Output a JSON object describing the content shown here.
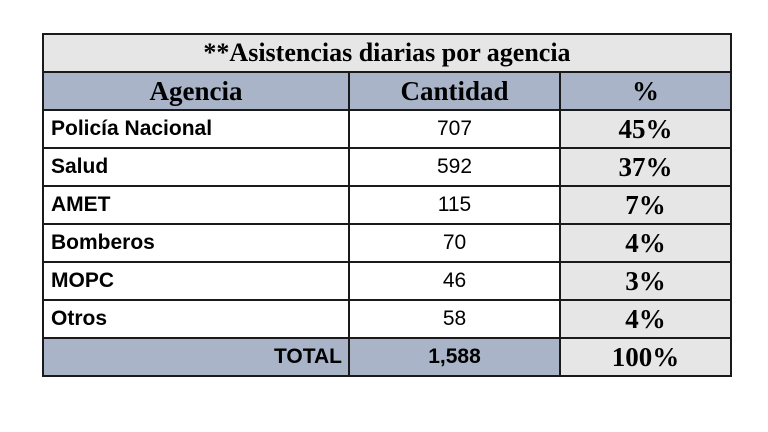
{
  "table": {
    "title": "**Asistencias diarias por agencia",
    "headers": [
      "Agencia",
      "Cantidad",
      "%"
    ],
    "rows": [
      {
        "agencia": "Policía Nacional",
        "cantidad": "707",
        "pct": "45%"
      },
      {
        "agencia": "Salud",
        "cantidad": "592",
        "pct": "37%"
      },
      {
        "agencia": "AMET",
        "cantidad": "115",
        "pct": "7%"
      },
      {
        "agencia": "Bomberos",
        "cantidad": "70",
        "pct": "4%"
      },
      {
        "agencia": "MOPC",
        "cantidad": "46",
        "pct": "3%"
      },
      {
        "agencia": "Otros",
        "cantidad": "58",
        "pct": "4%"
      }
    ],
    "total": {
      "label": "TOTAL",
      "cantidad": "1,588",
      "pct": "100%"
    },
    "colors": {
      "header_bg": "#a9b4c8",
      "light_bg": "#e6e6e6",
      "border": "#1a1a1a"
    }
  }
}
